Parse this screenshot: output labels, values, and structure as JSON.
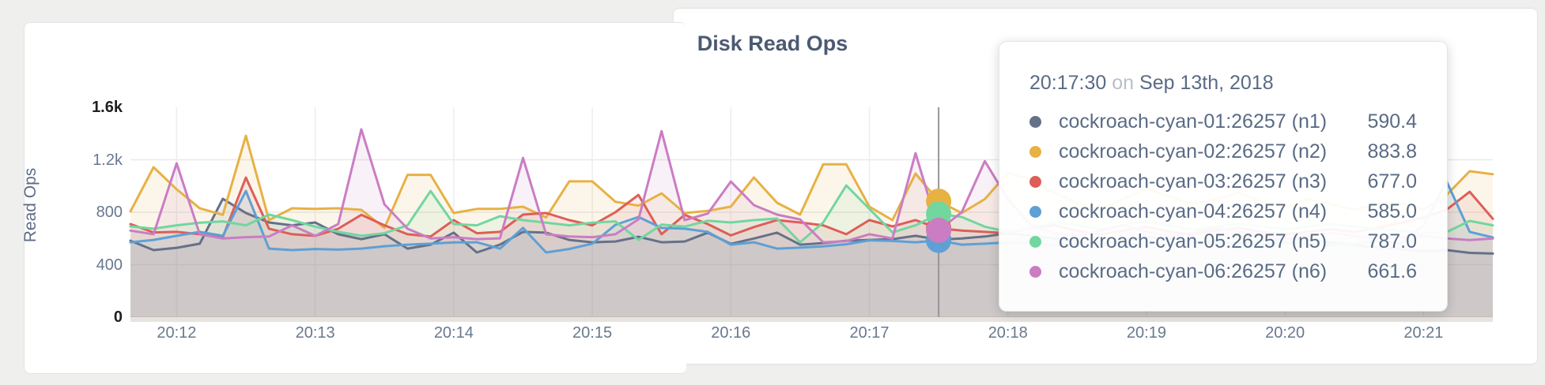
{
  "title": "Disk Read Ops",
  "y_axis": {
    "label": "Read Ops",
    "ticks": [
      {
        "label": "0",
        "value": 0,
        "emphasis": true,
        "grid": false
      },
      {
        "label": "400",
        "value": 400,
        "emphasis": false,
        "grid": true
      },
      {
        "label": "800",
        "value": 800,
        "emphasis": false,
        "grid": true
      },
      {
        "label": "1.2k",
        "value": 1200,
        "emphasis": false,
        "grid": true
      },
      {
        "label": "1.6k",
        "value": 1600,
        "emphasis": true,
        "grid": false
      }
    ]
  },
  "x_axis": {
    "ticks": [
      {
        "label": "20:12",
        "t": 20
      },
      {
        "label": "20:13",
        "t": 80
      },
      {
        "label": "20:14",
        "t": 140
      },
      {
        "label": "20:15",
        "t": 200
      },
      {
        "label": "20:16",
        "t": 260
      },
      {
        "label": "20:17",
        "t": 320
      },
      {
        "label": "20:18",
        "t": 380
      },
      {
        "label": "20:19",
        "t": 440
      },
      {
        "label": "20:20",
        "t": 500
      },
      {
        "label": "20:21",
        "t": 560
      }
    ]
  },
  "chart_data": {
    "type": "line",
    "title": "Disk Read Ops",
    "ylabel": "Read Ops",
    "ylim": [
      0,
      1600
    ],
    "x_start_time": "20:11:40",
    "seconds_per_point": 10,
    "grid": true,
    "series": [
      {
        "id": "n1",
        "name": "cockroach-cyan-01:26257 (n1)",
        "color": "#657189",
        "values": [
          583,
          511,
          529,
          560,
          902,
          794,
          722,
          700,
          722,
          632,
          595,
          632,
          523,
          553,
          644,
          493,
          553,
          650,
          644,
          589,
          571,
          577,
          613,
          571,
          577,
          644,
          559,
          600,
          644,
          553,
          565,
          583,
          589,
          595,
          620,
          590.4,
          600,
          615,
          640,
          620,
          600,
          580,
          560,
          590,
          610,
          600,
          580,
          570,
          560,
          580,
          600,
          590,
          570,
          550,
          530,
          520,
          500,
          511,
          490,
          485
        ]
      },
      {
        "id": "n2",
        "name": "cockroach-cyan-02:26257 (n2)",
        "color": "#e7b144",
        "values": [
          806,
          1143,
          975,
          830,
          780,
          1383,
          740,
          830,
          825,
          830,
          818,
          680,
          1085,
          1085,
          794,
          825,
          825,
          842,
          760,
          1035,
          1035,
          880,
          850,
          944,
          794,
          810,
          843,
          1065,
          872,
          782,
          1165,
          1165,
          843,
          740,
          1095,
          883.8,
          794,
          900,
          1100,
          1050,
          950,
          870,
          820,
          900,
          980,
          920,
          860,
          900,
          950,
          880,
          840,
          900,
          860,
          820,
          860,
          870,
          820,
          932,
          1113,
          1090
        ]
      },
      {
        "id": "n3",
        "name": "cockroach-cyan-03:26257 (n3)",
        "color": "#dd5e59",
        "values": [
          710,
          646,
          650,
          632,
          610,
          1064,
          674,
          632,
          620,
          674,
          780,
          700,
          632,
          615,
          740,
          640,
          650,
          782,
          794,
          740,
          700,
          800,
          932,
          632,
          780,
          710,
          623,
          687,
          740,
          722,
          700,
          632,
          740,
          692,
          740,
          677,
          660,
          650,
          640,
          680,
          700,
          660,
          630,
          660,
          690,
          650,
          630,
          660,
          680,
          650,
          630,
          650,
          670,
          650,
          680,
          720,
          760,
          820,
          956,
          750
        ]
      },
      {
        "id": "n4",
        "name": "cockroach-cyan-04:26257 (n4)",
        "color": "#5da0d6",
        "values": [
          571,
          589,
          620,
          650,
          620,
          962,
          523,
          511,
          520,
          515,
          523,
          541,
          553,
          560,
          570,
          571,
          523,
          680,
          493,
          520,
          560,
          704,
          764,
          680,
          674,
          650,
          553,
          571,
          523,
          530,
          540,
          556,
          586,
          581,
          571,
          585,
          553,
          560,
          570,
          560,
          550,
          560,
          570,
          560,
          550,
          560,
          570,
          560,
          550,
          560,
          570,
          560,
          550,
          560,
          580,
          560,
          700,
          1034,
          650,
          608
        ]
      },
      {
        "id": "n5",
        "name": "cockroach-cyan-05:26257 (n5)",
        "color": "#72d69e",
        "values": [
          692,
          674,
          700,
          720,
          730,
          700,
          782,
          740,
          690,
          650,
          620,
          640,
          700,
          962,
          710,
          700,
          770,
          740,
          720,
          700,
          720,
          730,
          589,
          706,
          690,
          735,
          722,
          740,
          752,
          571,
          722,
          1004,
          826,
          646,
          700,
          787,
          764,
          690,
          650,
          680,
          720,
          700,
          670,
          700,
          730,
          700,
          670,
          690,
          710,
          690,
          670,
          690,
          710,
          690,
          670,
          660,
          640,
          649,
          734,
          700
        ]
      },
      {
        "id": "n6",
        "name": "cockroach-cyan-06:26257 (n6)",
        "color": "#ca7dc3",
        "values": [
          660,
          632,
          1173,
          632,
          600,
          610,
          615,
          700,
          620,
          710,
          1432,
          860,
          674,
          600,
          610,
          595,
          601,
          1214,
          632,
          615,
          610,
          632,
          746,
          1418,
          740,
          790,
          1034,
          854,
          782,
          745,
          571,
          580,
          632,
          600,
          1250,
          661.6,
          800,
          1190,
          900,
          700,
          640,
          620,
          660,
          700,
          650,
          620,
          640,
          680,
          650,
          620,
          600,
          620,
          640,
          620,
          600,
          610,
          620,
          600,
          588,
          600
        ]
      }
    ],
    "hover": {
      "t": 350,
      "time": "20:17:30",
      "conjunction": "on",
      "date": "Sep 13th, 2018",
      "values": [
        590.4,
        883.8,
        677.0,
        585.0,
        787.0,
        661.6
      ],
      "value_labels": [
        "590.4",
        "883.8",
        "677.0",
        "585.0",
        "787.0",
        "661.6"
      ]
    }
  },
  "colors": {
    "grid_h": "#e9e9e9",
    "grid_v": "#ededed",
    "axis_band": "#e7e4e0",
    "crosshair": "#969696",
    "area_opacity": 0.11
  }
}
